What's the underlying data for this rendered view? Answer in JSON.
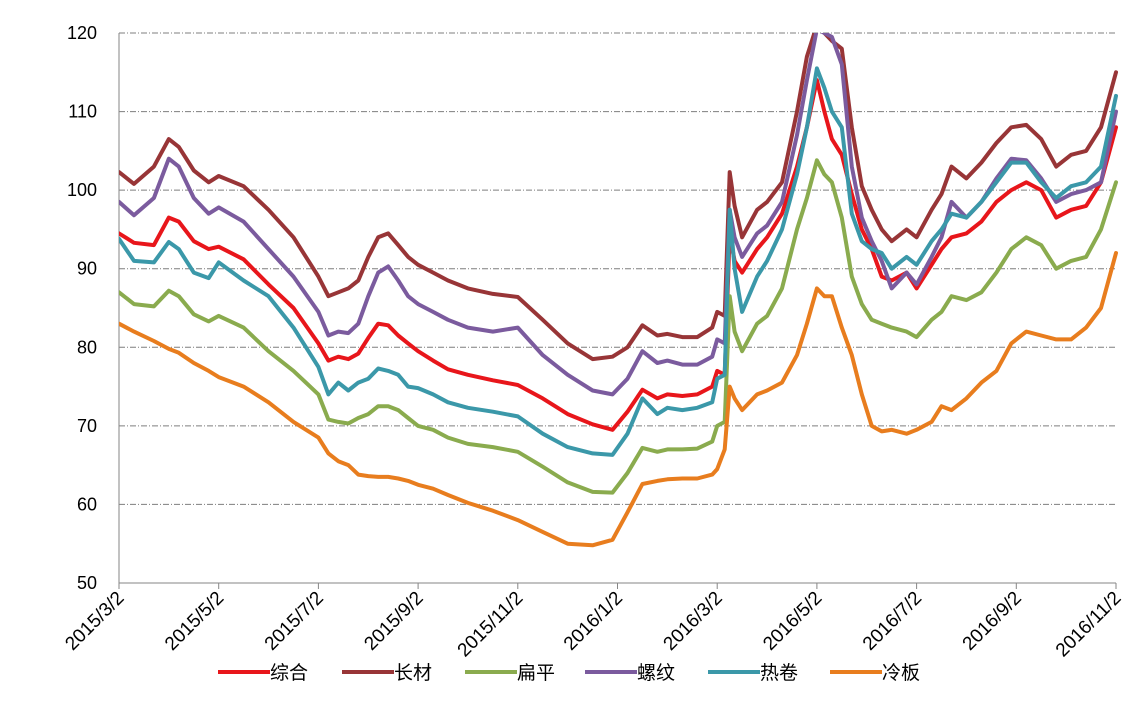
{
  "chart_data": {
    "type": "line",
    "title": "",
    "xlabel": "",
    "ylabel": "",
    "ylim": [
      50,
      120
    ],
    "yticks": [
      50,
      60,
      70,
      80,
      90,
      100,
      110,
      120
    ],
    "x_tick_labels": [
      "2015/3/2",
      "2015/5/2",
      "2015/7/2",
      "2015/9/2",
      "2015/11/2",
      "2016/1/2",
      "2016/3/2",
      "2016/5/2",
      "2016/7/2",
      "2016/9/2",
      "2016/11/2"
    ],
    "x_tick_positions": [
      0,
      2,
      4,
      6,
      8,
      10,
      12,
      14,
      16,
      18,
      20
    ],
    "grid": "horizontal",
    "legend_position": "bottom",
    "series": [
      {
        "name": "综合",
        "color": "#e8161b",
        "x": [
          0,
          0.3,
          0.7,
          1.0,
          1.2,
          1.5,
          1.8,
          2.0,
          2.5,
          3.0,
          3.5,
          4.0,
          4.2,
          4.4,
          4.6,
          4.8,
          5.0,
          5.2,
          5.4,
          5.6,
          5.8,
          6.0,
          6.3,
          6.6,
          7.0,
          7.5,
          8.0,
          8.5,
          9.0,
          9.5,
          9.9,
          10.2,
          10.5,
          10.8,
          11.0,
          11.3,
          11.6,
          11.9,
          12.0,
          12.15,
          12.25,
          12.35,
          12.5,
          12.8,
          13.0,
          13.3,
          13.6,
          13.8,
          14.0,
          14.15,
          14.3,
          14.5,
          14.7,
          14.9,
          15.1,
          15.3,
          15.5,
          15.8,
          16.0,
          16.3,
          16.5,
          16.7,
          17.0,
          17.3,
          17.6,
          17.9,
          18.2,
          18.5,
          18.8,
          19.1,
          19.4,
          19.7,
          20.0
        ],
        "values": [
          94.5,
          93.3,
          93.0,
          96.5,
          96.0,
          93.5,
          92.5,
          92.8,
          91.2,
          88.0,
          85.0,
          80.5,
          78.3,
          78.8,
          78.5,
          79.2,
          81.2,
          83.0,
          82.8,
          81.5,
          80.5,
          79.5,
          78.3,
          77.2,
          76.5,
          75.8,
          75.2,
          73.5,
          71.5,
          70.2,
          69.5,
          71.8,
          74.6,
          73.5,
          74.0,
          73.8,
          74.0,
          75.0,
          77.0,
          76.5,
          94.5,
          91.0,
          89.5,
          92.5,
          94.0,
          97.0,
          103.0,
          108.0,
          114.0,
          110.0,
          106.5,
          104.5,
          99.5,
          95.0,
          92.5,
          89.0,
          88.5,
          89.5,
          87.5,
          90.5,
          92.5,
          94.0,
          94.5,
          96.0,
          98.5,
          100.0,
          101.0,
          100.0,
          96.5,
          97.5,
          98.0,
          101.0,
          108.0
        ]
      },
      {
        "name": "长材",
        "color": "#983537",
        "x": [
          0,
          0.3,
          0.7,
          1.0,
          1.2,
          1.5,
          1.8,
          2.0,
          2.5,
          3.0,
          3.5,
          4.0,
          4.2,
          4.4,
          4.6,
          4.8,
          5.0,
          5.2,
          5.4,
          5.6,
          5.8,
          6.0,
          6.3,
          6.6,
          7.0,
          7.5,
          8.0,
          8.5,
          9.0,
          9.5,
          9.9,
          10.2,
          10.5,
          10.8,
          11.0,
          11.3,
          11.6,
          11.9,
          12.0,
          12.15,
          12.25,
          12.35,
          12.5,
          12.8,
          13.0,
          13.3,
          13.6,
          13.8,
          14.0,
          14.15,
          14.3,
          14.5,
          14.7,
          14.9,
          15.1,
          15.3,
          15.5,
          15.8,
          16.0,
          16.3,
          16.5,
          16.7,
          17.0,
          17.3,
          17.6,
          17.9,
          18.2,
          18.5,
          18.8,
          19.1,
          19.4,
          19.7,
          20.0
        ],
        "values": [
          102.3,
          100.8,
          103.0,
          106.5,
          105.5,
          102.5,
          101.0,
          101.8,
          100.5,
          97.5,
          94.0,
          89.0,
          86.5,
          87.0,
          87.5,
          88.5,
          91.5,
          94.0,
          94.5,
          93.0,
          91.5,
          90.5,
          89.5,
          88.5,
          87.5,
          86.8,
          86.4,
          83.5,
          80.5,
          78.5,
          78.8,
          80.0,
          82.8,
          81.5,
          81.7,
          81.3,
          81.3,
          82.5,
          84.5,
          84.0,
          102.3,
          98.0,
          94.0,
          97.5,
          98.5,
          101.0,
          110.0,
          117.0,
          121.0,
          120.0,
          119.0,
          118.0,
          108.0,
          100.5,
          97.5,
          95.0,
          93.5,
          95.0,
          94.0,
          97.5,
          99.5,
          103.0,
          101.5,
          103.5,
          106.0,
          108.0,
          108.3,
          106.5,
          103.0,
          104.5,
          105.0,
          108.0,
          115.0
        ]
      },
      {
        "name": "扁平",
        "color": "#8aab4e",
        "x": [
          0,
          0.3,
          0.7,
          1.0,
          1.2,
          1.5,
          1.8,
          2.0,
          2.5,
          3.0,
          3.5,
          4.0,
          4.2,
          4.4,
          4.6,
          4.8,
          5.0,
          5.2,
          5.4,
          5.6,
          5.8,
          6.0,
          6.3,
          6.6,
          7.0,
          7.5,
          8.0,
          8.5,
          9.0,
          9.5,
          9.9,
          10.2,
          10.5,
          10.8,
          11.0,
          11.3,
          11.6,
          11.9,
          12.0,
          12.15,
          12.25,
          12.35,
          12.5,
          12.8,
          13.0,
          13.3,
          13.6,
          13.8,
          14.0,
          14.15,
          14.3,
          14.5,
          14.7,
          14.9,
          15.1,
          15.3,
          15.5,
          15.8,
          16.0,
          16.3,
          16.5,
          16.7,
          17.0,
          17.3,
          17.6,
          17.9,
          18.2,
          18.5,
          18.8,
          19.1,
          19.4,
          19.7,
          20.0
        ],
        "values": [
          87.0,
          85.5,
          85.2,
          87.2,
          86.5,
          84.2,
          83.3,
          84.0,
          82.5,
          79.5,
          77.0,
          74.0,
          70.8,
          70.5,
          70.3,
          71.0,
          71.5,
          72.5,
          72.5,
          72.0,
          71.0,
          70.0,
          69.5,
          68.5,
          67.7,
          67.3,
          66.7,
          64.8,
          62.8,
          61.6,
          61.5,
          64.0,
          67.2,
          66.7,
          67.0,
          67.0,
          67.1,
          68.0,
          70.0,
          70.5,
          86.5,
          82.0,
          79.5,
          83.0,
          84.0,
          87.5,
          95.0,
          99.0,
          103.8,
          102.0,
          101.0,
          96.5,
          89.0,
          85.5,
          83.5,
          83.0,
          82.5,
          82.0,
          81.3,
          83.5,
          84.5,
          86.5,
          86.0,
          87.0,
          89.5,
          92.5,
          94.0,
          93.0,
          90.0,
          91.0,
          91.5,
          95.0,
          101.0
        ]
      },
      {
        "name": "螺纹",
        "color": "#7b5b9e",
        "x": [
          0,
          0.3,
          0.7,
          1.0,
          1.2,
          1.5,
          1.8,
          2.0,
          2.5,
          3.0,
          3.5,
          4.0,
          4.2,
          4.4,
          4.6,
          4.8,
          5.0,
          5.2,
          5.4,
          5.6,
          5.8,
          6.0,
          6.3,
          6.6,
          7.0,
          7.5,
          8.0,
          8.5,
          9.0,
          9.5,
          9.9,
          10.2,
          10.5,
          10.8,
          11.0,
          11.3,
          11.6,
          11.9,
          12.0,
          12.15,
          12.25,
          12.35,
          12.5,
          12.8,
          13.0,
          13.3,
          13.6,
          13.8,
          14.0,
          14.15,
          14.3,
          14.5,
          14.7,
          14.9,
          15.1,
          15.3,
          15.5,
          15.8,
          16.0,
          16.3,
          16.5,
          16.7,
          17.0,
          17.3,
          17.6,
          17.9,
          18.2,
          18.5,
          18.8,
          19.1,
          19.4,
          19.7,
          20.0
        ],
        "values": [
          98.5,
          96.8,
          99.0,
          104.0,
          103.0,
          99.0,
          97.0,
          97.8,
          96.0,
          92.5,
          89.0,
          84.5,
          81.5,
          82.0,
          81.8,
          83.0,
          86.5,
          89.5,
          90.3,
          88.5,
          86.5,
          85.5,
          84.5,
          83.5,
          82.5,
          82.0,
          82.5,
          79.0,
          76.5,
          74.5,
          74.0,
          76.0,
          79.5,
          78.0,
          78.3,
          77.8,
          77.8,
          78.8,
          81.0,
          80.5,
          97.5,
          94.0,
          91.5,
          94.5,
          95.5,
          98.5,
          107.0,
          114.0,
          120.5,
          120.0,
          119.5,
          116.0,
          103.0,
          96.5,
          93.5,
          91.0,
          87.5,
          89.5,
          88.0,
          91.5,
          94.0,
          98.5,
          96.5,
          98.5,
          101.5,
          104.0,
          103.8,
          101.5,
          98.5,
          99.5,
          100.0,
          101.0,
          110.0
        ]
      },
      {
        "name": "热卷",
        "color": "#3b98a9",
        "x": [
          0,
          0.3,
          0.7,
          1.0,
          1.2,
          1.5,
          1.8,
          2.0,
          2.5,
          3.0,
          3.5,
          4.0,
          4.2,
          4.4,
          4.6,
          4.8,
          5.0,
          5.2,
          5.4,
          5.6,
          5.8,
          6.0,
          6.3,
          6.6,
          7.0,
          7.5,
          8.0,
          8.5,
          9.0,
          9.5,
          9.9,
          10.2,
          10.5,
          10.8,
          11.0,
          11.3,
          11.6,
          11.9,
          12.0,
          12.15,
          12.25,
          12.35,
          12.5,
          12.8,
          13.0,
          13.3,
          13.6,
          13.8,
          14.0,
          14.15,
          14.3,
          14.5,
          14.7,
          14.9,
          15.1,
          15.3,
          15.5,
          15.8,
          16.0,
          16.3,
          16.5,
          16.7,
          17.0,
          17.3,
          17.6,
          17.9,
          18.2,
          18.5,
          18.8,
          19.1,
          19.4,
          19.7,
          20.0
        ],
        "values": [
          93.8,
          91.0,
          90.8,
          93.4,
          92.5,
          89.5,
          88.8,
          90.8,
          88.5,
          86.5,
          82.5,
          77.5,
          74.0,
          75.5,
          74.5,
          75.5,
          76.0,
          77.3,
          77.0,
          76.5,
          75.0,
          74.8,
          74.0,
          73.0,
          72.3,
          71.8,
          71.2,
          69.0,
          67.3,
          66.5,
          66.3,
          69.0,
          73.5,
          71.5,
          72.3,
          72.0,
          72.3,
          73.0,
          76.0,
          76.5,
          97.5,
          90.0,
          84.5,
          89.0,
          91.0,
          95.0,
          102.0,
          108.0,
          115.5,
          113.0,
          110.0,
          108.0,
          97.0,
          93.5,
          92.5,
          92.0,
          90.0,
          91.5,
          90.5,
          93.5,
          95.0,
          97.0,
          96.5,
          98.5,
          101.0,
          103.5,
          103.5,
          101.0,
          99.0,
          100.5,
          101.0,
          103.0,
          112.0
        ]
      },
      {
        "name": "冷板",
        "color": "#e87d1e",
        "x": [
          0,
          0.3,
          0.7,
          1.0,
          1.2,
          1.5,
          1.8,
          2.0,
          2.5,
          3.0,
          3.5,
          4.0,
          4.2,
          4.4,
          4.6,
          4.8,
          5.0,
          5.2,
          5.4,
          5.6,
          5.8,
          6.0,
          6.3,
          6.6,
          7.0,
          7.5,
          8.0,
          8.5,
          9.0,
          9.5,
          9.9,
          10.2,
          10.5,
          10.8,
          11.0,
          11.3,
          11.6,
          11.9,
          12.0,
          12.15,
          12.25,
          12.35,
          12.5,
          12.8,
          13.0,
          13.3,
          13.6,
          13.8,
          14.0,
          14.15,
          14.3,
          14.5,
          14.7,
          14.9,
          15.1,
          15.3,
          15.5,
          15.8,
          16.0,
          16.3,
          16.5,
          16.7,
          17.0,
          17.3,
          17.6,
          17.9,
          18.2,
          18.5,
          18.8,
          19.1,
          19.4,
          19.7,
          20.0
        ],
        "values": [
          83.0,
          82.0,
          80.8,
          79.8,
          79.3,
          78.0,
          77.0,
          76.2,
          75.0,
          73.0,
          70.5,
          68.5,
          66.5,
          65.5,
          65.0,
          63.8,
          63.6,
          63.5,
          63.5,
          63.3,
          63.0,
          62.5,
          62.0,
          61.2,
          60.2,
          59.2,
          58.0,
          56.5,
          55.0,
          54.8,
          55.5,
          59.0,
          62.6,
          63.0,
          63.2,
          63.3,
          63.3,
          63.8,
          64.5,
          67.0,
          75.0,
          73.5,
          72.0,
          74.0,
          74.5,
          75.5,
          79.0,
          83.0,
          87.5,
          86.5,
          86.5,
          82.5,
          79.0,
          74.0,
          70.0,
          69.3,
          69.5,
          69.0,
          69.5,
          70.5,
          72.5,
          72.0,
          73.5,
          75.5,
          77.0,
          80.5,
          82.0,
          81.5,
          81.0,
          81.0,
          82.5,
          85.0,
          92.0
        ]
      }
    ]
  }
}
